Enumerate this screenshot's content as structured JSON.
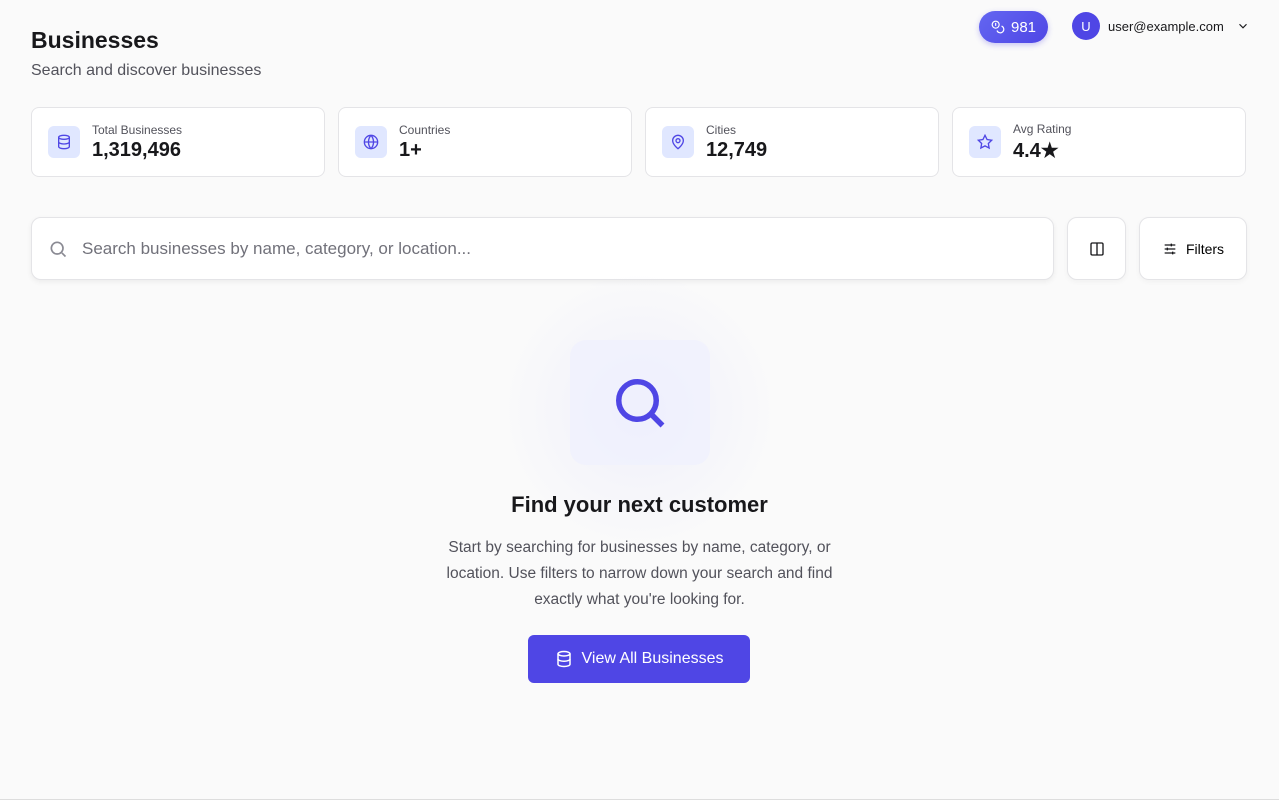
{
  "header": {
    "title": "Businesses",
    "subtitle": "Search and discover businesses"
  },
  "credits": {
    "value": "981",
    "icon": "coins-icon"
  },
  "user": {
    "avatar": "U",
    "email": "user@example.com"
  },
  "stats": [
    {
      "label": "Total Businesses",
      "value": "1,319,496",
      "icon": "database-icon"
    },
    {
      "label": "Countries",
      "value": "1+",
      "icon": "globe-icon"
    },
    {
      "label": "Cities",
      "value": "12,749",
      "icon": "map-pin-icon"
    },
    {
      "label": "Avg Rating",
      "value": "4.4★",
      "icon": "star-icon"
    }
  ],
  "search": {
    "placeholder": "Search businesses by name, category, or location...",
    "value": ""
  },
  "filters_label": "Filters",
  "empty": {
    "title": "Find your next customer",
    "text": "Start by searching for businesses by name, category, or location. Use filters to narrow down your search and find exactly what you're looking for.",
    "button": "View All Businesses"
  },
  "colors": {
    "accent": "#4f46e5",
    "icon_bg": "#e0e7ff"
  }
}
